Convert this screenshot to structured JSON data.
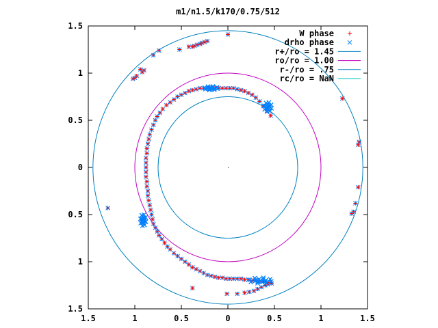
{
  "chart_data": {
    "type": "scatter",
    "title": "m1/n1.5/k170/0.75/512",
    "xlim": [
      -1.5,
      1.5
    ],
    "ylim": [
      -1.5,
      1.5
    ],
    "x_ticks": [
      {
        "value": -1.5,
        "label": "1.5"
      },
      {
        "value": -1.0,
        "label": "1"
      },
      {
        "value": -0.5,
        "label": "0.5"
      },
      {
        "value": 0.0,
        "label": "0"
      },
      {
        "value": 0.5,
        "label": "0.5"
      },
      {
        "value": 1.0,
        "label": "1"
      },
      {
        "value": 1.5,
        "label": "1.5"
      }
    ],
    "y_ticks": [
      {
        "value": 1.5,
        "label": "1.5"
      },
      {
        "value": 1.0,
        "label": "1"
      },
      {
        "value": 0.5,
        "label": "0.5"
      },
      {
        "value": 0.0,
        "label": "0"
      },
      {
        "value": -0.5,
        "label": "0.5"
      },
      {
        "value": -1.0,
        "label": "1"
      },
      {
        "value": -1.5,
        "label": "1.5"
      }
    ],
    "grid": false,
    "legend_position": "top-right",
    "series": [
      {
        "name": "W phase",
        "marker": "plus",
        "color": "#ff0000"
      },
      {
        "name": "drho phase",
        "marker": "cross",
        "color": "#0080ff"
      }
    ],
    "circles": [
      {
        "name": "r+/ro = 1.45",
        "radius": 1.45,
        "color": "#0080c0"
      },
      {
        "name": "ro/ro = 1.00",
        "radius": 1.0,
        "color": "#c000c0"
      },
      {
        "name": "r-/ro = .75",
        "radius": 0.75,
        "color": "#0080c0"
      },
      {
        "name": "rc/ro = NaN",
        "radius": null,
        "color": "#00c0c0"
      }
    ],
    "points": [
      [
        0.0,
        1.41
      ],
      [
        -0.22,
        1.34
      ],
      [
        -0.25,
        1.33
      ],
      [
        -0.28,
        1.32
      ],
      [
        -0.3,
        1.31
      ],
      [
        -0.33,
        1.3
      ],
      [
        -0.36,
        1.29
      ],
      [
        -0.38,
        1.28
      ],
      [
        -0.42,
        1.28
      ],
      [
        -0.52,
        1.25
      ],
      [
        -0.74,
        1.24
      ],
      [
        -0.8,
        1.19
      ],
      [
        -0.94,
        1.04
      ],
      [
        -0.9,
        1.03
      ],
      [
        -0.92,
        1.01
      ],
      [
        -0.98,
        0.97
      ],
      [
        -1.0,
        0.95
      ],
      [
        -1.02,
        0.94
      ],
      [
        -1.29,
        -0.43
      ],
      [
        1.23,
        0.73
      ],
      [
        1.41,
        0.27
      ],
      [
        1.4,
        0.24
      ],
      [
        1.4,
        -0.21
      ],
      [
        1.37,
        -0.38
      ],
      [
        1.35,
        -0.47
      ],
      [
        1.33,
        -0.49
      ],
      [
        0.46,
        0.55
      ],
      [
        0.42,
        0.6
      ],
      [
        0.38,
        0.65
      ],
      [
        0.34,
        0.7
      ],
      [
        0.3,
        0.74
      ],
      [
        0.26,
        0.77
      ],
      [
        0.22,
        0.79
      ],
      [
        0.18,
        0.81
      ],
      [
        0.14,
        0.82
      ],
      [
        0.1,
        0.83
      ],
      [
        0.06,
        0.84
      ],
      [
        0.02,
        0.84
      ],
      [
        -0.02,
        0.84
      ],
      [
        -0.06,
        0.84
      ],
      [
        -0.1,
        0.84
      ],
      [
        -0.14,
        0.84
      ],
      [
        -0.18,
        0.84
      ],
      [
        -0.22,
        0.84
      ],
      [
        -0.26,
        0.84
      ],
      [
        -0.3,
        0.84
      ],
      [
        -0.34,
        0.83
      ],
      [
        -0.38,
        0.82
      ],
      [
        -0.42,
        0.81
      ],
      [
        -0.46,
        0.79
      ],
      [
        -0.5,
        0.77
      ],
      [
        -0.54,
        0.75
      ],
      [
        -0.58,
        0.72
      ],
      [
        -0.62,
        0.69
      ],
      [
        -0.66,
        0.66
      ],
      [
        -0.7,
        0.62
      ],
      [
        -0.73,
        0.58
      ],
      [
        -0.76,
        0.54
      ],
      [
        -0.78,
        0.5
      ],
      [
        -0.8,
        0.45
      ],
      [
        -0.82,
        0.4
      ],
      [
        -0.84,
        0.35
      ],
      [
        -0.85,
        0.3
      ],
      [
        -0.86,
        0.25
      ],
      [
        -0.87,
        0.2
      ],
      [
        -0.87,
        0.15
      ],
      [
        -0.88,
        0.1
      ],
      [
        -0.88,
        0.05
      ],
      [
        -0.88,
        0.0
      ],
      [
        -0.88,
        -0.05
      ],
      [
        -0.88,
        -0.1
      ],
      [
        -0.87,
        -0.15
      ],
      [
        -0.87,
        -0.2
      ],
      [
        -0.86,
        -0.25
      ],
      [
        -0.86,
        -0.3
      ],
      [
        -0.85,
        -0.35
      ],
      [
        -0.84,
        -0.4
      ],
      [
        -0.83,
        -0.45
      ],
      [
        -0.82,
        -0.5
      ],
      [
        -0.81,
        -0.55
      ],
      [
        -0.8,
        -0.6
      ],
      [
        -0.78,
        -0.64
      ],
      [
        -0.76,
        -0.68
      ],
      [
        -0.74,
        -0.72
      ],
      [
        -0.71,
        -0.76
      ],
      [
        -0.68,
        -0.8
      ],
      [
        -0.65,
        -0.84
      ],
      [
        -0.62,
        -0.87
      ],
      [
        -0.58,
        -0.91
      ],
      [
        -0.54,
        -0.94
      ],
      [
        -0.5,
        -0.97
      ],
      [
        -0.46,
        -1.0
      ],
      [
        -0.42,
        -1.03
      ],
      [
        -0.38,
        -1.06
      ],
      [
        -0.34,
        -1.08
      ],
      [
        -0.3,
        -1.1
      ],
      [
        -0.26,
        -1.12
      ],
      [
        -0.22,
        -1.14
      ],
      [
        -0.18,
        -1.15
      ],
      [
        -0.14,
        -1.16
      ],
      [
        -0.1,
        -1.17
      ],
      [
        -0.06,
        -1.17
      ],
      [
        -0.02,
        -1.18
      ],
      [
        0.02,
        -1.18
      ],
      [
        0.06,
        -1.18
      ],
      [
        0.1,
        -1.18
      ],
      [
        0.14,
        -1.18
      ],
      [
        0.18,
        -1.19
      ],
      [
        0.22,
        -1.19
      ],
      [
        0.26,
        -1.2
      ],
      [
        0.3,
        -1.2
      ],
      [
        0.34,
        -1.21
      ],
      [
        0.38,
        -1.21
      ],
      [
        0.42,
        -1.22
      ],
      [
        0.45,
        -1.22
      ],
      [
        -0.38,
        -1.28
      ],
      [
        -0.01,
        -1.34
      ],
      [
        0.1,
        -1.34
      ],
      [
        0.18,
        -1.33
      ],
      [
        0.23,
        -1.32
      ],
      [
        0.28,
        -1.31
      ],
      [
        0.32,
        -1.29
      ],
      [
        0.36,
        -1.27
      ],
      [
        0.4,
        -1.25
      ],
      [
        0.43,
        -1.24
      ],
      [
        0.47,
        -1.23
      ]
    ],
    "dense_clusters": [
      {
        "cx": 0.43,
        "cy": 0.64,
        "rx": 0.04,
        "ry": 0.05
      },
      {
        "cx": -0.18,
        "cy": 0.84,
        "rx": 0.07,
        "ry": 0.02
      },
      {
        "cx": -0.91,
        "cy": -0.56,
        "rx": 0.03,
        "ry": 0.06
      },
      {
        "cx": 0.35,
        "cy": -1.2,
        "rx": 0.12,
        "ry": 0.03
      }
    ]
  }
}
